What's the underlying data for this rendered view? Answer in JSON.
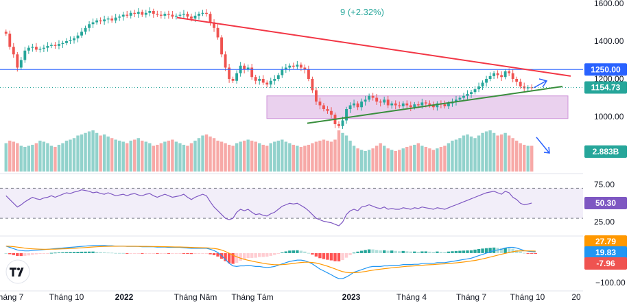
{
  "chart_data": {
    "type": "candlestick",
    "header_change": "9 (+2.32%)",
    "x_tick_labels": [
      "háng 7",
      "Tháng 10",
      "2022",
      "Tháng Năm",
      "Tháng Tám",
      "2023",
      "Tháng 4",
      "Tháng 7",
      "Tháng 10",
      "20"
    ],
    "price_axis": {
      "ticks": [
        1000,
        1200,
        1400,
        1600
      ],
      "tick_labels": [
        "1000.00",
        "1200.00",
        "1400.00",
        "1600.00"
      ],
      "range": [
        940,
        1640
      ]
    },
    "last_price": "1154.73",
    "support_level": "1250.00",
    "volume_last": "2.883B",
    "rsi": {
      "value": "50.30",
      "levels": [
        "75.00",
        "25.00"
      ],
      "range": [
        10,
        85
      ]
    },
    "macd": {
      "values": [
        "27.79",
        "19.83",
        "-7.96"
      ],
      "axis_label": "−100.00",
      "range": [
        -110,
        45
      ]
    },
    "colors": {
      "up": "#26a69a",
      "down": "#ef5350",
      "resistance": "#f23645",
      "support": "#388e3c",
      "hline": "#2962ff",
      "zone": "#e1bee7",
      "rsi": "#7e57c2",
      "macd": "#2196f3",
      "signal": "#ff9800"
    },
    "closes": [
      1440,
      1370,
      1330,
      1260,
      1300,
      1350,
      1365,
      1370,
      1355,
      1360,
      1365,
      1375,
      1380,
      1375,
      1385,
      1390,
      1400,
      1405,
      1415,
      1430,
      1450,
      1470,
      1490,
      1500,
      1510,
      1505,
      1515,
      1520,
      1510,
      1525,
      1530,
      1540,
      1535,
      1550,
      1545,
      1555,
      1540,
      1550,
      1560,
      1545,
      1540,
      1535,
      1545,
      1540,
      1530,
      1535,
      1540,
      1545,
      1530,
      1520,
      1535,
      1545,
      1550,
      1545,
      1500,
      1470,
      1420,
      1330,
      1260,
      1200,
      1190,
      1230,
      1270,
      1250,
      1260,
      1210,
      1190,
      1200,
      1180,
      1170,
      1190,
      1200,
      1220,
      1250,
      1260,
      1270,
      1265,
      1275,
      1260,
      1250,
      1200,
      1140,
      1080,
      1060,
      1040,
      1030,
      1010,
      960,
      950,
      980,
      1040,
      1060,
      1070,
      1050,
      1080,
      1090,
      1110,
      1100,
      1080,
      1075,
      1090,
      1060,
      1070,
      1060,
      1055,
      1070,
      1060,
      1050,
      1065,
      1060,
      1075,
      1070,
      1060,
      1050,
      1070,
      1065,
      1055,
      1070,
      1080,
      1090,
      1100,
      1110,
      1120,
      1130,
      1145,
      1160,
      1180,
      1200,
      1215,
      1230,
      1220,
      1210,
      1240,
      1230,
      1200,
      1185,
      1160,
      1150,
      1155,
      1154.73
    ],
    "volumes": [
      0.55,
      0.6,
      0.58,
      0.55,
      0.5,
      0.48,
      0.5,
      0.52,
      0.55,
      0.6,
      0.58,
      0.55,
      0.5,
      0.48,
      0.52,
      0.55,
      0.6,
      0.62,
      0.65,
      0.7,
      0.72,
      0.75,
      0.78,
      0.8,
      0.75,
      0.7,
      0.72,
      0.68,
      0.65,
      0.62,
      0.6,
      0.58,
      0.55,
      0.6,
      0.62,
      0.65,
      0.6,
      0.58,
      0.55,
      0.5,
      0.52,
      0.55,
      0.58,
      0.6,
      0.62,
      0.58,
      0.55,
      0.52,
      0.5,
      0.55,
      0.6,
      0.65,
      0.7,
      0.72,
      0.68,
      0.65,
      0.6,
      0.58,
      0.55,
      0.52,
      0.5,
      0.55,
      0.58,
      0.6,
      0.62,
      0.6,
      0.58,
      0.55,
      0.52,
      0.5,
      0.55,
      0.58,
      0.6,
      0.62,
      0.58,
      0.55,
      0.52,
      0.5,
      0.48,
      0.5,
      0.52,
      0.55,
      0.58,
      0.6,
      0.62,
      0.6,
      0.58,
      0.62,
      0.8,
      0.75,
      0.7,
      0.6,
      0.5,
      0.45,
      0.42,
      0.4,
      0.42,
      0.45,
      0.5,
      0.55,
      0.5,
      0.45,
      0.42,
      0.4,
      0.42,
      0.45,
      0.48,
      0.5,
      0.52,
      0.55,
      0.5,
      0.48,
      0.45,
      0.42,
      0.45,
      0.48,
      0.5,
      0.55,
      0.6,
      0.62,
      0.65,
      0.7,
      0.72,
      0.68,
      0.65,
      0.7,
      0.75,
      0.78,
      0.8,
      0.75,
      0.7,
      0.72,
      0.75,
      0.7,
      0.65,
      0.6,
      0.55,
      0.52,
      0.5,
      0.5
    ],
    "rsi_series": [
      60,
      55,
      50,
      45,
      48,
      52,
      55,
      58,
      56,
      55,
      57,
      58,
      60,
      58,
      60,
      62,
      64,
      63,
      65,
      66,
      68,
      67,
      66,
      64,
      65,
      63,
      62,
      64,
      62,
      60,
      61,
      62,
      60,
      62,
      63,
      61,
      60,
      62,
      63,
      60,
      58,
      60,
      62,
      60,
      58,
      59,
      60,
      62,
      58,
      55,
      58,
      60,
      62,
      60,
      52,
      45,
      40,
      35,
      30,
      28,
      30,
      38,
      42,
      40,
      42,
      38,
      35,
      36,
      34,
      33,
      36,
      38,
      42,
      46,
      48,
      50,
      49,
      50,
      47,
      44,
      40,
      35,
      30,
      28,
      26,
      25,
      24,
      22,
      20,
      25,
      35,
      40,
      42,
      40,
      45,
      46,
      48,
      46,
      44,
      43,
      45,
      42,
      43,
      42,
      42,
      44,
      43,
      42,
      44,
      43,
      45,
      44,
      43,
      42,
      44,
      43,
      42,
      44,
      46,
      48,
      50,
      52,
      54,
      56,
      58,
      60,
      62,
      64,
      65,
      66,
      64,
      62,
      66,
      64,
      58,
      55,
      50,
      48,
      49,
      50.3
    ],
    "macd_series": [
      22,
      18,
      14,
      10,
      8,
      7,
      7,
      8,
      9,
      10,
      11,
      12,
      13,
      14,
      15,
      16,
      17,
      18,
      19,
      20,
      21,
      22,
      23,
      24,
      24,
      24,
      24,
      23,
      23,
      22,
      22,
      22,
      21,
      21,
      21,
      21,
      20,
      20,
      20,
      20,
      19,
      19,
      19,
      18,
      18,
      18,
      18,
      17,
      16,
      15,
      15,
      15,
      15,
      15,
      12,
      8,
      2,
      -8,
      -20,
      -32,
      -40,
      -42,
      -40,
      -40,
      -38,
      -40,
      -42,
      -42,
      -44,
      -45,
      -44,
      -42,
      -38,
      -34,
      -30,
      -26,
      -24,
      -22,
      -22,
      -24,
      -28,
      -34,
      -42,
      -50,
      -56,
      -62,
      -68,
      -75,
      -80,
      -80,
      -75,
      -68,
      -60,
      -56,
      -52,
      -48,
      -44,
      -42,
      -42,
      -42,
      -40,
      -40,
      -38,
      -38,
      -38,
      -36,
      -36,
      -36,
      -35,
      -35,
      -33,
      -32,
      -32,
      -32,
      -30,
      -30,
      -30,
      -28,
      -26,
      -24,
      -22,
      -20,
      -18,
      -16,
      -12,
      -8,
      -4,
      0,
      4,
      8,
      10,
      12,
      16,
      18,
      18,
      16,
      12,
      8,
      6,
      5,
      4
    ]
  }
}
